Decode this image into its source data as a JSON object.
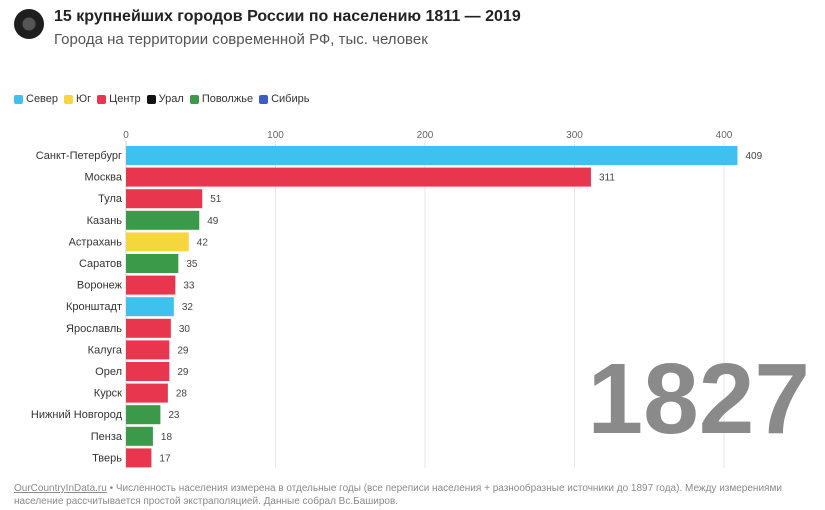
{
  "header": {
    "title": "15 крупнейших городов России по населению 1811 — 2019",
    "subtitle": "Города на территории современной РФ, тыс. человек"
  },
  "legend": [
    {
      "label": "Север",
      "color": "#3ec1ee"
    },
    {
      "label": "Юг",
      "color": "#f5d63d"
    },
    {
      "label": "Центр",
      "color": "#e8364e"
    },
    {
      "label": "Урал",
      "color": "#111111"
    },
    {
      "label": "Поволжье",
      "color": "#3a9a4a"
    },
    {
      "label": "Сибирь",
      "color": "#3d5fc4"
    }
  ],
  "year": "1827",
  "chart_data": {
    "type": "bar",
    "orientation": "horizontal",
    "xlim": [
      0,
      420
    ],
    "xticks": [
      0,
      100,
      200,
      300,
      400
    ],
    "grid": true,
    "legend_position": "top-left",
    "categories": [
      "Санкт-Петербург",
      "Москва",
      "Тула",
      "Казань",
      "Астрахань",
      "Саратов",
      "Воронеж",
      "Кронштадт",
      "Ярославль",
      "Калуга",
      "Орел",
      "Курск",
      "Нижний Новгород",
      "Пенза",
      "Тверь"
    ],
    "values": [
      409,
      311,
      51,
      49,
      42,
      35,
      33,
      32,
      30,
      29,
      29,
      28,
      23,
      18,
      17
    ],
    "regions": [
      "Север",
      "Центр",
      "Центр",
      "Поволжье",
      "Юг",
      "Поволжье",
      "Центр",
      "Север",
      "Центр",
      "Центр",
      "Центр",
      "Центр",
      "Поволжье",
      "Поволжье",
      "Центр"
    ]
  },
  "footer": {
    "source": "OurCountryInData.ru",
    "note": " • Численность населения измерена в отдельные годы (все переписи населения + разнообразные источники до 1897 года). Между измерениями население рассчитывается простой экстраполяцией. Данные собрал Вс.Баширов."
  }
}
